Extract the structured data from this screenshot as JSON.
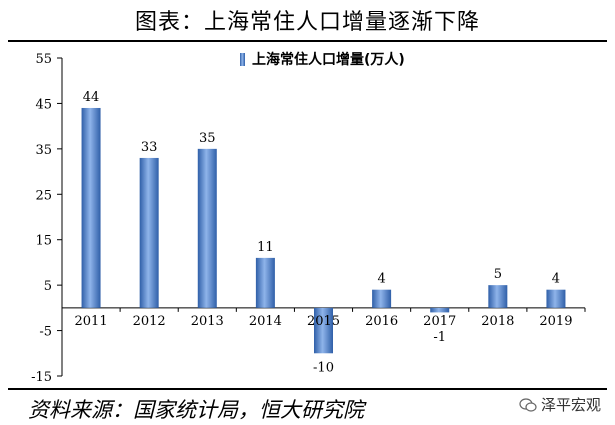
{
  "header": {
    "title": "图表：上海常住人口增量逐渐下降"
  },
  "footer": {
    "source": "资料来源：国家统计局，恒大研究院",
    "brand": "泽平宏观"
  },
  "colors": {
    "bar": "#5b8ed6",
    "bar_dark": "#2f5fa8",
    "axis": "#000000"
  },
  "chart_data": {
    "type": "bar",
    "title": "图表：上海常住人口增量逐渐下降",
    "categories": [
      "2011",
      "2012",
      "2013",
      "2014",
      "2015",
      "2016",
      "2017",
      "2018",
      "2019"
    ],
    "series": [
      {
        "name": "上海常住人口增量(万人)",
        "values": [
          44,
          33,
          35,
          11,
          -10,
          4,
          -1,
          5,
          4
        ]
      }
    ],
    "data_labels": [
      "44",
      "33",
      "35",
      "11",
      "-10",
      "4",
      "-1",
      "5",
      "4"
    ],
    "ylim": [
      -15,
      55
    ],
    "yticks": [
      -15,
      -5,
      5,
      15,
      25,
      35,
      45,
      55
    ],
    "ytick_labels": [
      "-15",
      "-5",
      "5",
      "15",
      "25",
      "35",
      "45",
      "55"
    ],
    "xlabel": "",
    "ylabel": "",
    "legend": "top-right",
    "grid": false
  }
}
